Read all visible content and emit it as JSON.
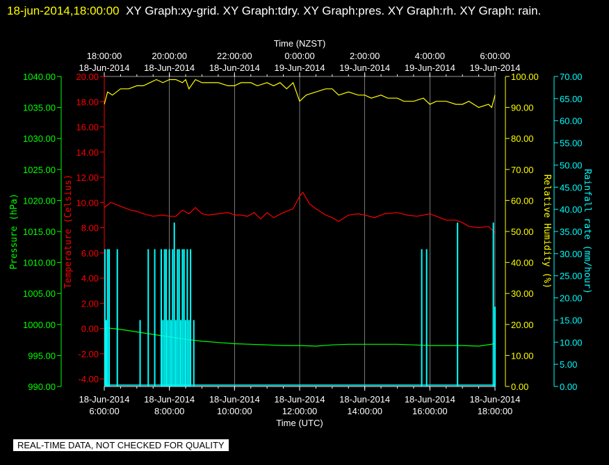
{
  "header": {
    "timestamp": "18-jun-2014,18:00:00",
    "title": "XY Graph:xy-grid.  XY Graph:tdry.  XY Graph:pres.  XY Graph:rh.  XY Graph: rain."
  },
  "banner": "REAL-TIME DATA, NOT CHECKED FOR QUALITY",
  "colors": {
    "background": "#000000",
    "grid": "#ffffff",
    "pressure": "#00ff00",
    "temperature": "#ff0000",
    "humidity": "#ffff00",
    "rain": "#00ffff"
  },
  "chart_data": {
    "type": "line",
    "x_axis_bottom": {
      "label": "Time (UTC)",
      "ticks": [
        {
          "time": "6:00:00",
          "date": "18-Jun-2014"
        },
        {
          "time": "8:00:00",
          "date": "18-Jun-2014"
        },
        {
          "time": "10:00:00",
          "date": "18-Jun-2014"
        },
        {
          "time": "12:00:00",
          "date": "18-Jun-2014"
        },
        {
          "time": "14:00:00",
          "date": "18-Jun-2014"
        },
        {
          "time": "16:00:00",
          "date": "18-Jun-2014"
        },
        {
          "time": "18:00:00",
          "date": "18-Jun-2014"
        }
      ],
      "range_hours_utc": [
        6,
        18
      ]
    },
    "x_axis_top": {
      "label": "Time (NZST)",
      "ticks": [
        {
          "time": "18:00:00",
          "date": "18-Jun-2014"
        },
        {
          "time": "20:00:00",
          "date": "18-Jun-2014"
        },
        {
          "time": "22:00:00",
          "date": "18-Jun-2014"
        },
        {
          "time": "0:00:00",
          "date": "19-Jun-2014"
        },
        {
          "time": "2:00:00",
          "date": "19-Jun-2014"
        },
        {
          "time": "4:00:00",
          "date": "19-Jun-2014"
        },
        {
          "time": "6:00:00",
          "date": "19-Jun-2014"
        }
      ]
    },
    "axes": {
      "pressure": {
        "label": "Pressure (hPa)",
        "range": [
          990,
          1040
        ],
        "ticks": [
          "1040.00",
          "1035.00",
          "1030.00",
          "1025.00",
          "1020.00",
          "1015.00",
          "1010.00",
          "1005.00",
          "1000.00",
          "995.00",
          "990.00"
        ]
      },
      "temperature": {
        "label": "Temperature (Celsius)",
        "range": [
          -4.6,
          20
        ],
        "ticks": [
          "20.00",
          "18.00",
          "16.00",
          "14.00",
          "12.00",
          "10.00",
          "8.00",
          "6.00",
          "4.00",
          "2.00",
          "0.00",
          "-2.00",
          "-4.00"
        ]
      },
      "humidity": {
        "label": "Relative Humidity (%)",
        "range": [
          0,
          100
        ],
        "ticks": [
          "100.00",
          "90.00",
          "80.00",
          "70.00",
          "60.00",
          "50.00",
          "40.00",
          "30.00",
          "20.00",
          "10.00",
          "0.00"
        ]
      },
      "rain": {
        "label": "Rainfall rate (mm/hour)",
        "range": [
          0,
          70
        ],
        "ticks": [
          "70.00",
          "65.00",
          "60.00",
          "55.00",
          "50.00",
          "45.00",
          "40.00",
          "35.00",
          "30.00",
          "25.00",
          "20.00",
          "15.00",
          "10.00",
          "5.00",
          "0.00"
        ]
      }
    },
    "grid": true,
    "series": [
      {
        "key": "humidity",
        "axis": "humidity",
        "x_hours_utc": [
          6,
          6.1,
          6.25,
          6.5,
          6.75,
          7,
          7.2,
          7.4,
          7.6,
          7.8,
          8,
          8.2,
          8.4,
          8.5,
          8.6,
          8.8,
          9,
          9.2,
          9.5,
          9.8,
          10,
          10.2,
          10.5,
          10.7,
          11,
          11.2,
          11.4,
          11.6,
          11.8,
          11.9,
          12,
          12.2,
          12.5,
          12.8,
          13,
          13.2,
          13.5,
          13.8,
          14,
          14.2,
          14.5,
          14.7,
          15,
          15.2,
          15.5,
          15.8,
          16,
          16.2,
          16.5,
          16.8,
          17,
          17.2,
          17.5,
          17.8,
          17.9,
          18
        ],
        "values": [
          91,
          95,
          94,
          96,
          96,
          97,
          97,
          98,
          99,
          98,
          99,
          99,
          98,
          99,
          96,
          99,
          98,
          98,
          98,
          97,
          97,
          98,
          98,
          97,
          98,
          97,
          98,
          96,
          98,
          95,
          92,
          94,
          95,
          96,
          96,
          94,
          95,
          94,
          94,
          93,
          94,
          93,
          93,
          92,
          92,
          93,
          91,
          92,
          92,
          91,
          91,
          92,
          90,
          91,
          90,
          94
        ]
      },
      {
        "key": "temperature",
        "axis": "temperature",
        "x_hours_utc": [
          6,
          6.2,
          6.5,
          6.8,
          7,
          7.2,
          7.5,
          7.8,
          8,
          8.2,
          8.4,
          8.6,
          8.8,
          9,
          9.2,
          9.5,
          9.8,
          10,
          10.2,
          10.4,
          10.6,
          10.8,
          11,
          11.2,
          11.5,
          11.8,
          12,
          12.1,
          12.3,
          12.5,
          12.8,
          13,
          13.2,
          13.5,
          13.8,
          14,
          14.3,
          14.6,
          15,
          15.3,
          15.6,
          16,
          16.2,
          16.5,
          16.8,
          17,
          17.2,
          17.5,
          17.8,
          18
        ],
        "values": [
          9.6,
          10.0,
          9.7,
          9.4,
          9.3,
          9.1,
          8.9,
          9.0,
          8.9,
          8.9,
          9.4,
          9.1,
          9.6,
          9.1,
          9.0,
          9.1,
          9.2,
          9.0,
          9.0,
          8.9,
          9.2,
          8.7,
          9.2,
          8.8,
          9.2,
          9.5,
          10.5,
          10.8,
          9.9,
          9.5,
          9.0,
          8.8,
          8.5,
          9.0,
          9.1,
          9.0,
          8.8,
          9.1,
          9.2,
          9.0,
          8.9,
          9.1,
          8.9,
          8.6,
          8.6,
          8.4,
          8.1,
          8.0,
          8.1,
          7.6
        ]
      },
      {
        "key": "pressure",
        "axis": "pressure",
        "x_hours_utc": [
          6,
          6.5,
          7,
          7.5,
          8,
          8.5,
          9,
          9.5,
          10,
          10.5,
          11,
          11.5,
          12,
          12.5,
          13,
          13.5,
          14,
          14.5,
          15,
          15.5,
          16,
          16.5,
          17,
          17.5,
          18
        ],
        "values": [
          999.5,
          999.2,
          998.8,
          998.4,
          998.0,
          997.6,
          997.3,
          997.1,
          996.9,
          996.8,
          996.7,
          996.6,
          996.6,
          996.5,
          996.7,
          996.8,
          996.8,
          996.8,
          996.8,
          996.7,
          996.6,
          996.6,
          996.6,
          996.5,
          996.9
        ]
      },
      {
        "key": "rain",
        "axis": "rain",
        "type": "bar",
        "x_hours_utc": [
          6.02,
          6.06,
          6.1,
          6.15,
          6.4,
          7.1,
          7.35,
          7.55,
          7.75,
          7.8,
          7.85,
          7.9,
          7.95,
          8.0,
          8.05,
          8.1,
          8.15,
          8.2,
          8.25,
          8.3,
          8.35,
          8.4,
          8.45,
          8.5,
          8.55,
          8.6,
          8.65,
          8.75,
          15.75,
          15.9,
          16.85,
          17.95,
          18.0
        ],
        "values": [
          31,
          15,
          31,
          31,
          31,
          15,
          31,
          31,
          31,
          15,
          31,
          31,
          15,
          31,
          15,
          31,
          37,
          15,
          31,
          31,
          15,
          31,
          31,
          15,
          31,
          15,
          31,
          15,
          31,
          31,
          37,
          37,
          18
        ]
      }
    ]
  }
}
